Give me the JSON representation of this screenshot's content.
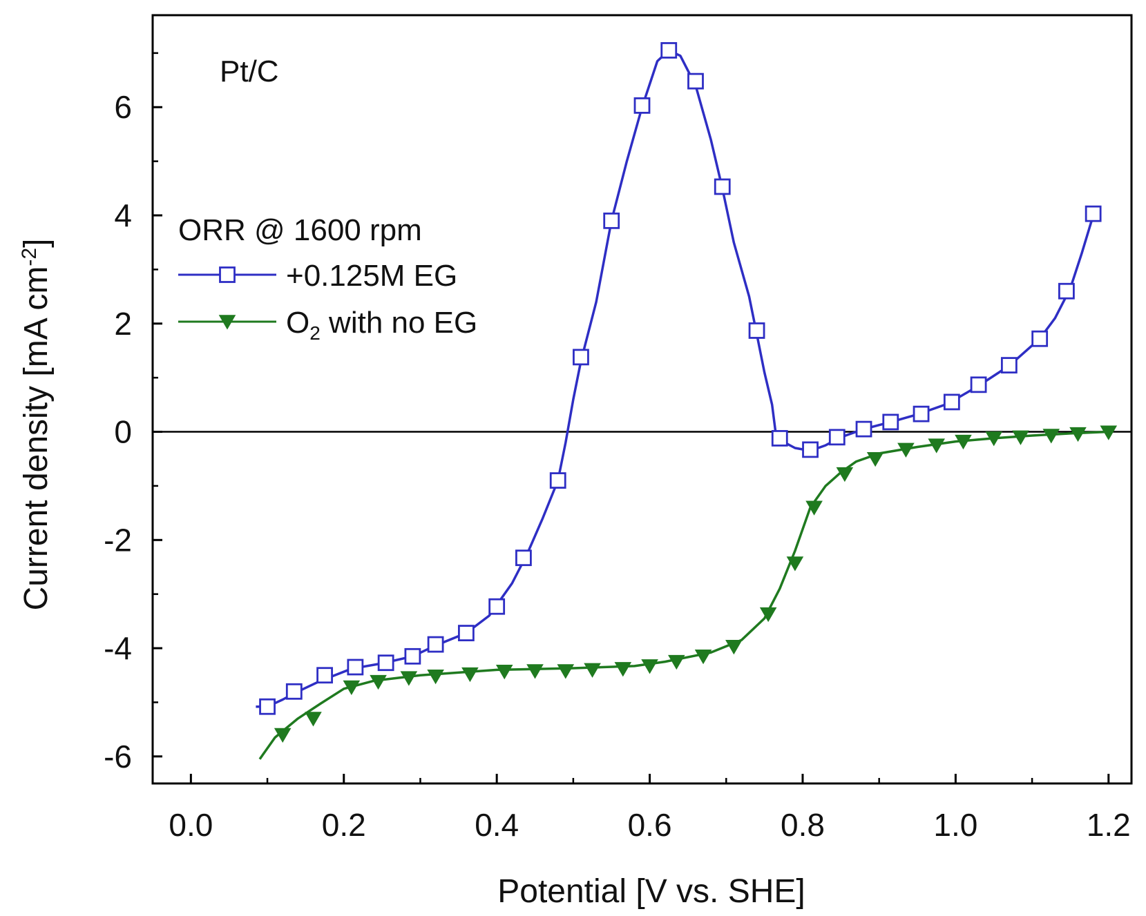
{
  "chart_data": {
    "type": "line",
    "panel_label": "Pt/C",
    "xlabel": "Potential [V vs. SHE]",
    "ylabel_main": "Current density [mA cm",
    "ylabel_sup": "-2",
    "ylabel_close": "]",
    "xlim": [
      -0.05,
      1.23
    ],
    "ylim": [
      -6.5,
      7.7
    ],
    "x_ticks": [
      0.0,
      0.2,
      0.4,
      0.6,
      0.8,
      1.0,
      1.2
    ],
    "x_tick_labels": [
      "0.0",
      "0.2",
      "0.4",
      "0.6",
      "0.8",
      "1.0",
      "1.2"
    ],
    "y_ticks": [
      -6,
      -4,
      -2,
      0,
      2,
      4,
      6
    ],
    "y_tick_labels": [
      "-6",
      "-4",
      "-2",
      "0",
      "2",
      "4",
      "6"
    ],
    "zero_line": true,
    "legend": {
      "title": "ORR @ 1600 rpm",
      "position": "upper-left",
      "entries": [
        {
          "series": 0,
          "text": "+0.125M EG"
        },
        {
          "series": 1,
          "text_main": "O",
          "text_sub": "2",
          "text_rest": " with no EG"
        }
      ]
    },
    "series": [
      {
        "name": "+0.125M EG",
        "color": "#2e2ec4",
        "marker": "open-square",
        "line": [
          [
            0.085,
            -5.08
          ],
          [
            0.1,
            -5.08
          ],
          [
            0.12,
            -4.95
          ],
          [
            0.14,
            -4.8
          ],
          [
            0.17,
            -4.6
          ],
          [
            0.21,
            -4.38
          ],
          [
            0.25,
            -4.28
          ],
          [
            0.29,
            -4.15
          ],
          [
            0.32,
            -3.95
          ],
          [
            0.36,
            -3.72
          ],
          [
            0.39,
            -3.4
          ],
          [
            0.42,
            -2.8
          ],
          [
            0.44,
            -2.25
          ],
          [
            0.46,
            -1.6
          ],
          [
            0.48,
            -0.9
          ],
          [
            0.49,
            -0.2
          ],
          [
            0.5,
            0.6
          ],
          [
            0.51,
            1.3
          ],
          [
            0.53,
            2.4
          ],
          [
            0.55,
            3.9
          ],
          [
            0.57,
            5.0
          ],
          [
            0.59,
            6.0
          ],
          [
            0.61,
            6.85
          ],
          [
            0.625,
            7.05
          ],
          [
            0.64,
            6.95
          ],
          [
            0.66,
            6.4
          ],
          [
            0.68,
            5.4
          ],
          [
            0.695,
            4.5
          ],
          [
            0.71,
            3.5
          ],
          [
            0.73,
            2.5
          ],
          [
            0.74,
            1.8
          ],
          [
            0.75,
            1.1
          ],
          [
            0.76,
            0.5
          ],
          [
            0.765,
            -0.05
          ],
          [
            0.77,
            -0.15
          ],
          [
            0.79,
            -0.3
          ],
          [
            0.81,
            -0.35
          ],
          [
            0.83,
            -0.25
          ],
          [
            0.85,
            -0.1
          ],
          [
            0.88,
            0.05
          ],
          [
            0.915,
            0.18
          ],
          [
            0.95,
            0.32
          ],
          [
            0.99,
            0.52
          ],
          [
            1.03,
            0.85
          ],
          [
            1.07,
            1.22
          ],
          [
            1.11,
            1.72
          ],
          [
            1.13,
            2.1
          ],
          [
            1.15,
            2.65
          ],
          [
            1.165,
            3.3
          ],
          [
            1.18,
            4.0
          ]
        ],
        "markers": [
          [
            0.1,
            -5.08
          ],
          [
            0.135,
            -4.8
          ],
          [
            0.175,
            -4.5
          ],
          [
            0.215,
            -4.35
          ],
          [
            0.255,
            -4.27
          ],
          [
            0.29,
            -4.15
          ],
          [
            0.32,
            -3.93
          ],
          [
            0.36,
            -3.72
          ],
          [
            0.4,
            -3.23
          ],
          [
            0.435,
            -2.33
          ],
          [
            0.48,
            -0.9
          ],
          [
            0.51,
            1.38
          ],
          [
            0.55,
            3.9
          ],
          [
            0.59,
            6.03
          ],
          [
            0.625,
            7.05
          ],
          [
            0.66,
            6.48
          ],
          [
            0.695,
            4.53
          ],
          [
            0.74,
            1.87
          ],
          [
            0.77,
            -0.12
          ],
          [
            0.81,
            -0.33
          ],
          [
            0.845,
            -0.1
          ],
          [
            0.88,
            0.05
          ],
          [
            0.915,
            0.18
          ],
          [
            0.955,
            0.33
          ],
          [
            0.995,
            0.55
          ],
          [
            1.03,
            0.87
          ],
          [
            1.07,
            1.23
          ],
          [
            1.11,
            1.72
          ],
          [
            1.145,
            2.6
          ],
          [
            1.18,
            4.03
          ]
        ]
      },
      {
        "name": "O2 with no EG",
        "color": "#1f7a1f",
        "marker": "filled-down-triangle",
        "line": [
          [
            0.09,
            -6.05
          ],
          [
            0.11,
            -5.65
          ],
          [
            0.14,
            -5.3
          ],
          [
            0.17,
            -5.02
          ],
          [
            0.2,
            -4.75
          ],
          [
            0.24,
            -4.6
          ],
          [
            0.3,
            -4.5
          ],
          [
            0.4,
            -4.4
          ],
          [
            0.5,
            -4.37
          ],
          [
            0.58,
            -4.33
          ],
          [
            0.62,
            -4.25
          ],
          [
            0.68,
            -4.08
          ],
          [
            0.72,
            -3.85
          ],
          [
            0.75,
            -3.45
          ],
          [
            0.77,
            -2.9
          ],
          [
            0.79,
            -2.2
          ],
          [
            0.81,
            -1.4
          ],
          [
            0.83,
            -1.0
          ],
          [
            0.85,
            -0.75
          ],
          [
            0.87,
            -0.55
          ],
          [
            0.9,
            -0.4
          ],
          [
            0.95,
            -0.28
          ],
          [
            1.0,
            -0.18
          ],
          [
            1.05,
            -0.12
          ],
          [
            1.1,
            -0.07
          ],
          [
            1.15,
            -0.03
          ],
          [
            1.2,
            0.0
          ]
        ],
        "markers": [
          [
            0.12,
            -5.6
          ],
          [
            0.16,
            -5.3
          ],
          [
            0.21,
            -4.72
          ],
          [
            0.245,
            -4.62
          ],
          [
            0.285,
            -4.55
          ],
          [
            0.32,
            -4.52
          ],
          [
            0.365,
            -4.48
          ],
          [
            0.41,
            -4.43
          ],
          [
            0.45,
            -4.42
          ],
          [
            0.49,
            -4.42
          ],
          [
            0.525,
            -4.4
          ],
          [
            0.565,
            -4.38
          ],
          [
            0.6,
            -4.33
          ],
          [
            0.635,
            -4.25
          ],
          [
            0.67,
            -4.15
          ],
          [
            0.71,
            -3.97
          ],
          [
            0.755,
            -3.37
          ],
          [
            0.79,
            -2.43
          ],
          [
            0.815,
            -1.4
          ],
          [
            0.855,
            -0.78
          ],
          [
            0.895,
            -0.5
          ],
          [
            0.935,
            -0.33
          ],
          [
            0.975,
            -0.25
          ],
          [
            1.01,
            -0.18
          ],
          [
            1.05,
            -0.12
          ],
          [
            1.085,
            -0.1
          ],
          [
            1.125,
            -0.07
          ],
          [
            1.16,
            -0.04
          ],
          [
            1.2,
            -0.01
          ]
        ]
      }
    ]
  }
}
